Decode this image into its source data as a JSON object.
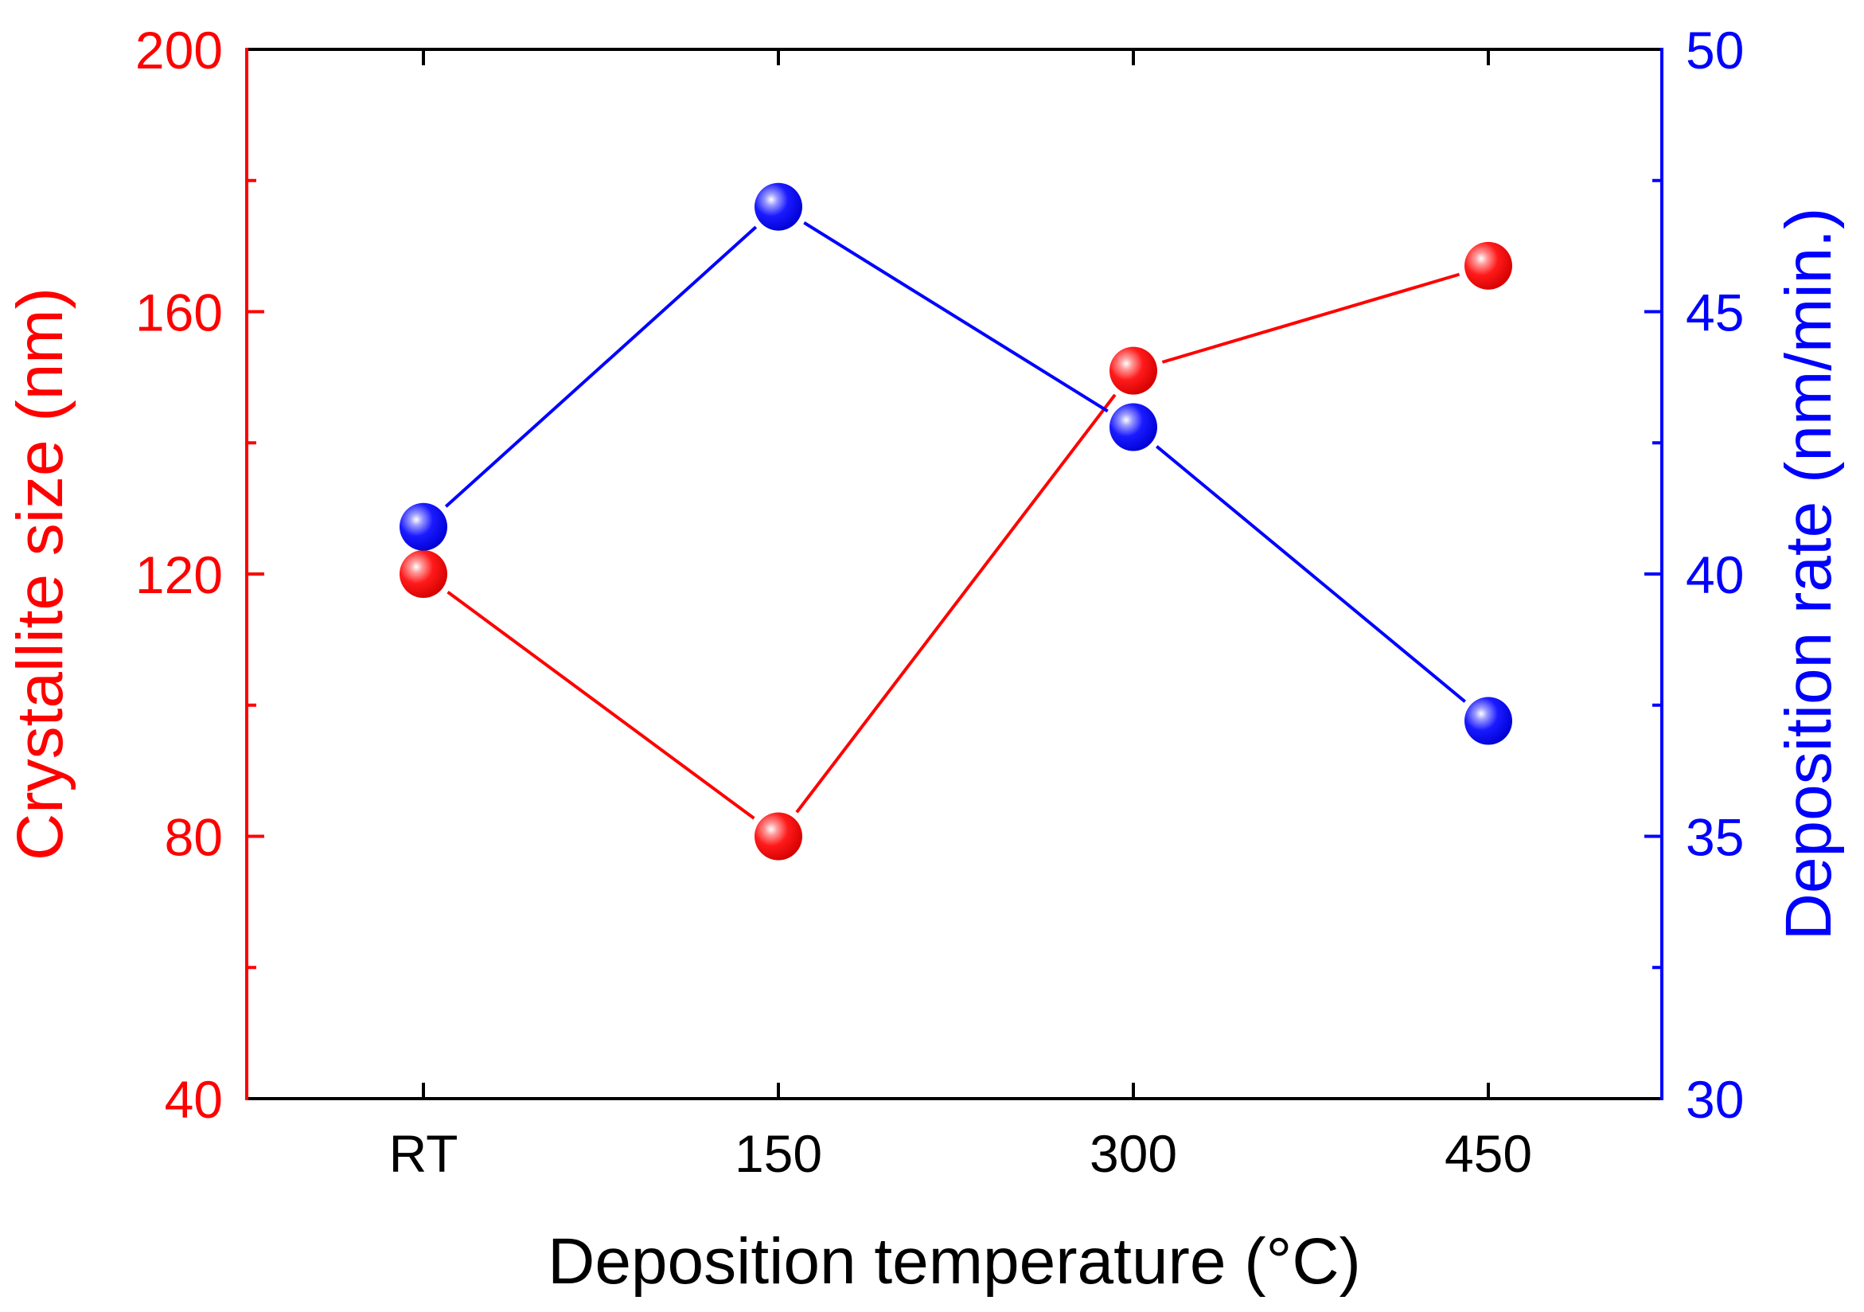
{
  "chart_data": {
    "type": "line",
    "xlabel": "Deposition temperature (°C)",
    "categories": [
      "RT",
      "150",
      "300",
      "450"
    ],
    "grid": false,
    "series": [
      {
        "axis": "left",
        "ylabel": "Crystallite size (nm)",
        "color": "#ff0000",
        "values": [
          120,
          80,
          151,
          167
        ],
        "ylim": [
          40,
          200
        ],
        "yticks": [
          40,
          80,
          120,
          160,
          200
        ]
      },
      {
        "axis": "right",
        "ylabel": "Deposition rate (nm/min.)",
        "color": "#0000ff",
        "values": [
          40.9,
          47.0,
          42.8,
          37.2
        ],
        "ylim": [
          30,
          50
        ],
        "yticks": [
          30,
          35,
          40,
          45,
          50
        ]
      }
    ]
  }
}
